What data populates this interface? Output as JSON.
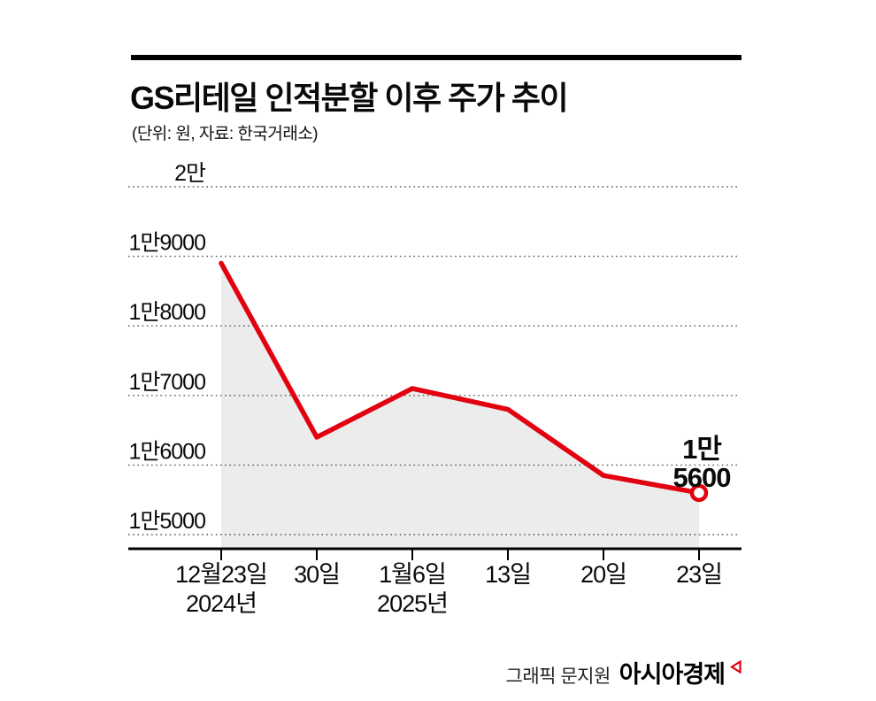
{
  "header": {
    "title": "GS리테일 인적분할 이후 주가 추이",
    "subtitle": "(단위: 원, 자료: 한국거래소)"
  },
  "chart_data": {
    "type": "line",
    "title": "GS리테일 인적분할 이후 주가 추이",
    "unit_note": "(단위: 원, 자료: 한국거래소)",
    "x_labels": [
      [
        "12월23일",
        "2024년"
      ],
      [
        "30일"
      ],
      [
        "1월6일",
        "2025년"
      ],
      [
        "13일"
      ],
      [
        "20일"
      ],
      [
        "23일"
      ]
    ],
    "values": [
      18900,
      16400,
      17100,
      16800,
      15850,
      15600
    ],
    "ylim": [
      15000,
      20000
    ],
    "yticks": [
      20000,
      19000,
      18000,
      17000,
      16000,
      15000
    ],
    "ytick_labels": [
      "2만",
      "1만9000",
      "1만8000",
      "1만7000",
      "1만6000",
      "1만5000"
    ],
    "grid": "horizontal-dotted",
    "legend": "none",
    "line_color": "#e3000f",
    "area_fill": "#ececec",
    "annotation": {
      "text_lines": [
        "1만",
        "5600"
      ],
      "point_index": 5,
      "value": 15600
    }
  },
  "footer": {
    "credit": "그래픽 문지원",
    "brand": "아시아경제"
  },
  "colors": {
    "accent_red": "#e3000f",
    "area_gray": "#ececec",
    "axis_black": "#000000",
    "grid_gray": "#555555"
  }
}
